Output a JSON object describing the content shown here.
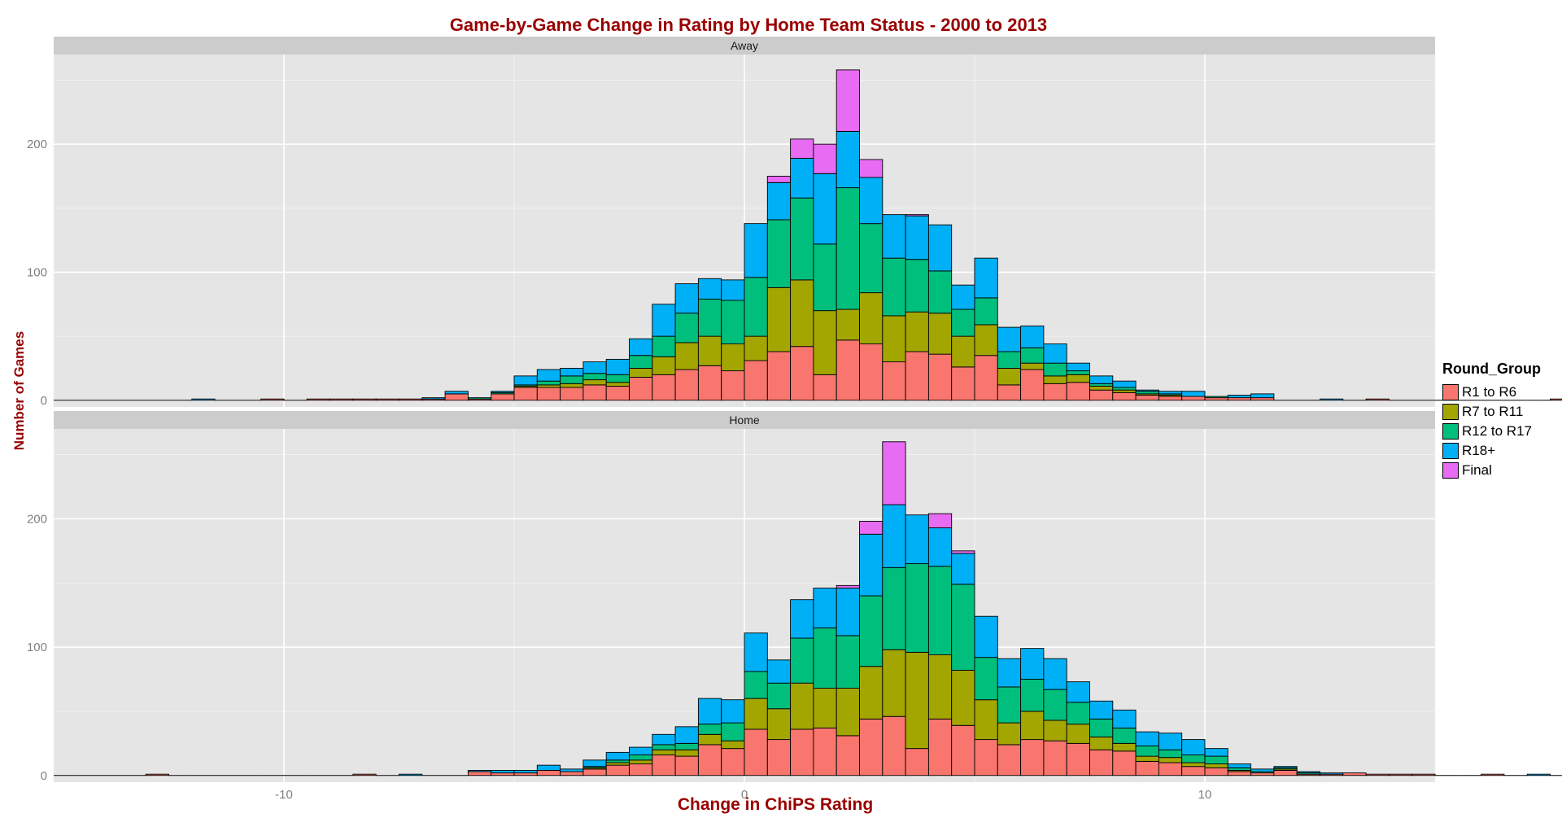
{
  "chart_data": {
    "type": "bar",
    "title": "Game-by-Game Change in Rating by Home Team Status - 2000 to 2013",
    "xlabel": "Change in ChiPS Rating",
    "ylabel": "Number of Games",
    "legend_title": "Round_Group",
    "legend_position": "right",
    "stacked": true,
    "grid": true,
    "xlim": [
      -15,
      15
    ],
    "ylim": [
      0,
      270
    ],
    "x_ticks": [
      -10,
      0,
      10
    ],
    "y_ticks": [
      0,
      100,
      200
    ],
    "bin_width": 0.5,
    "bin_start": -15,
    "groups": [
      {
        "name": "R1 to R6",
        "color": "#F8766D"
      },
      {
        "name": "R7 to R11",
        "color": "#A3A500"
      },
      {
        "name": "R12 to R17",
        "color": "#00BF7D"
      },
      {
        "name": "R18+",
        "color": "#00B0F6"
      },
      {
        "name": "Final",
        "color": "#E76BF3"
      }
    ],
    "panels": [
      {
        "label": "Away",
        "bins": [
          [
            0,
            0,
            0,
            0,
            0
          ],
          [
            0,
            0,
            0,
            0,
            0
          ],
          [
            0,
            0,
            0,
            0,
            0
          ],
          [
            0,
            0,
            0,
            0,
            0
          ],
          [
            0,
            0,
            0,
            0,
            0
          ],
          [
            0,
            0,
            0,
            0,
            0
          ],
          [
            0,
            0,
            0,
            1,
            0
          ],
          [
            0,
            0,
            0,
            0,
            0
          ],
          [
            0,
            0,
            0,
            0,
            0
          ],
          [
            1,
            0,
            0,
            0,
            0
          ],
          [
            0,
            0,
            0,
            0,
            0
          ],
          [
            1,
            0,
            0,
            0,
            0
          ],
          [
            1,
            0,
            0,
            0,
            0
          ],
          [
            1,
            0,
            0,
            0,
            0
          ],
          [
            1,
            0,
            0,
            0,
            0
          ],
          [
            1,
            0,
            0,
            0,
            0
          ],
          [
            1,
            0,
            0,
            1,
            0
          ],
          [
            5,
            0,
            0,
            2,
            0
          ],
          [
            1,
            0,
            1,
            0,
            0
          ],
          [
            5,
            0,
            1,
            1,
            0
          ],
          [
            10,
            1,
            1,
            7,
            0
          ],
          [
            10,
            2,
            3,
            9,
            0
          ],
          [
            10,
            3,
            6,
            6,
            0
          ],
          [
            12,
            4,
            5,
            9,
            0
          ],
          [
            11,
            3,
            6,
            12,
            0
          ],
          [
            18,
            7,
            10,
            13,
            0
          ],
          [
            20,
            14,
            16,
            25,
            0
          ],
          [
            24,
            21,
            23,
            23,
            0
          ],
          [
            27,
            23,
            29,
            16,
            0
          ],
          [
            23,
            21,
            34,
            16,
            0
          ],
          [
            31,
            19,
            46,
            42,
            0
          ],
          [
            38,
            50,
            53,
            29,
            5
          ],
          [
            42,
            52,
            64,
            31,
            15
          ],
          [
            20,
            50,
            52,
            55,
            23
          ],
          [
            47,
            24,
            95,
            44,
            48
          ],
          [
            44,
            40,
            54,
            36,
            14
          ],
          [
            30,
            36,
            45,
            34,
            0
          ],
          [
            38,
            31,
            41,
            34,
            1
          ],
          [
            36,
            32,
            33,
            36,
            0
          ],
          [
            26,
            24,
            21,
            19,
            0
          ],
          [
            35,
            24,
            21,
            31,
            0
          ],
          [
            12,
            13,
            13,
            19,
            0
          ],
          [
            24,
            5,
            12,
            17,
            0
          ],
          [
            13,
            6,
            10,
            15,
            0
          ],
          [
            14,
            6,
            3,
            6,
            0
          ],
          [
            8,
            3,
            2,
            6,
            0
          ],
          [
            6,
            2,
            2,
            5,
            0
          ],
          [
            4,
            1,
            2,
            1,
            0
          ],
          [
            3,
            1,
            1,
            2,
            0
          ],
          [
            3,
            0,
            0,
            4,
            0
          ],
          [
            2,
            0,
            1,
            0,
            0
          ],
          [
            2,
            0,
            0,
            2,
            0
          ],
          [
            2,
            0,
            0,
            3,
            0
          ],
          [
            0,
            0,
            0,
            0,
            0
          ],
          [
            0,
            0,
            0,
            0,
            0
          ],
          [
            0,
            0,
            0,
            1,
            0
          ],
          [
            0,
            0,
            0,
            0,
            0
          ],
          [
            1,
            0,
            0,
            0,
            0
          ],
          [
            0,
            0,
            0,
            0,
            0
          ],
          [
            0,
            0,
            0,
            0,
            0
          ],
          [
            0,
            0,
            0,
            0,
            0
          ],
          [
            0,
            0,
            0,
            0,
            0
          ],
          [
            0,
            0,
            0,
            0,
            0
          ],
          [
            0,
            0,
            0,
            0,
            0
          ],
          [
            0,
            0,
            0,
            0,
            0
          ],
          [
            1,
            0,
            0,
            0,
            0
          ],
          [
            0,
            0,
            0,
            0,
            0
          ],
          [
            0,
            0,
            0,
            0,
            0
          ],
          [
            0,
            0,
            0,
            0,
            0
          ],
          [
            0,
            0,
            0,
            0,
            0
          ],
          [
            0,
            0,
            0,
            0,
            0
          ],
          [
            0,
            0,
            0,
            0,
            0
          ]
        ]
      },
      {
        "label": "Home",
        "bins": [
          [
            0,
            0,
            0,
            0,
            0
          ],
          [
            0,
            0,
            0,
            0,
            0
          ],
          [
            0,
            0,
            0,
            0,
            0
          ],
          [
            0,
            0,
            0,
            0,
            0
          ],
          [
            1,
            0,
            0,
            0,
            0
          ],
          [
            0,
            0,
            0,
            0,
            0
          ],
          [
            0,
            0,
            0,
            0,
            0
          ],
          [
            0,
            0,
            0,
            0,
            0
          ],
          [
            0,
            0,
            0,
            0,
            0
          ],
          [
            0,
            0,
            0,
            0,
            0
          ],
          [
            0,
            0,
            0,
            0,
            0
          ],
          [
            0,
            0,
            0,
            0,
            0
          ],
          [
            0,
            0,
            0,
            0,
            0
          ],
          [
            1,
            0,
            0,
            0,
            0
          ],
          [
            0,
            0,
            0,
            0,
            0
          ],
          [
            0,
            0,
            0,
            1,
            0
          ],
          [
            0,
            0,
            0,
            0,
            0
          ],
          [
            0,
            0,
            0,
            0,
            0
          ],
          [
            3,
            0,
            0,
            1,
            0
          ],
          [
            2,
            0,
            0,
            2,
            0
          ],
          [
            2,
            0,
            0,
            2,
            0
          ],
          [
            4,
            0,
            0,
            4,
            0
          ],
          [
            3,
            0,
            0,
            2,
            0
          ],
          [
            5,
            1,
            1,
            5,
            0
          ],
          [
            8,
            2,
            2,
            6,
            0
          ],
          [
            9,
            3,
            4,
            6,
            0
          ],
          [
            16,
            4,
            4,
            8,
            0
          ],
          [
            15,
            5,
            5,
            13,
            0
          ],
          [
            24,
            8,
            8,
            20,
            0
          ],
          [
            21,
            6,
            14,
            18,
            0
          ],
          [
            36,
            24,
            21,
            30,
            0
          ],
          [
            28,
            24,
            20,
            18,
            0
          ],
          [
            36,
            36,
            35,
            30,
            0
          ],
          [
            37,
            31,
            47,
            31,
            0
          ],
          [
            31,
            37,
            41,
            37,
            2
          ],
          [
            44,
            41,
            55,
            48,
            10
          ],
          [
            46,
            52,
            64,
            49,
            49
          ],
          [
            21,
            75,
            69,
            38,
            0
          ],
          [
            44,
            50,
            69,
            30,
            11
          ],
          [
            39,
            43,
            67,
            24,
            2
          ],
          [
            28,
            31,
            33,
            32,
            0
          ],
          [
            24,
            17,
            28,
            22,
            0
          ],
          [
            28,
            22,
            25,
            24,
            0
          ],
          [
            27,
            16,
            24,
            24,
            0
          ],
          [
            25,
            15,
            17,
            16,
            0
          ],
          [
            20,
            10,
            14,
            14,
            0
          ],
          [
            19,
            6,
            12,
            14,
            0
          ],
          [
            11,
            4,
            8,
            11,
            0
          ],
          [
            10,
            4,
            6,
            13,
            0
          ],
          [
            7,
            3,
            6,
            12,
            0
          ],
          [
            6,
            3,
            6,
            6,
            0
          ],
          [
            3,
            1,
            2,
            3,
            0
          ],
          [
            2,
            0,
            1,
            2,
            0
          ],
          [
            4,
            1,
            1,
            1,
            0
          ],
          [
            1,
            0,
            1,
            1,
            0
          ],
          [
            1,
            0,
            0,
            1,
            0
          ],
          [
            2,
            0,
            0,
            0,
            0
          ],
          [
            1,
            0,
            0,
            0,
            0
          ],
          [
            1,
            0,
            0,
            0,
            0
          ],
          [
            1,
            0,
            0,
            0,
            0
          ],
          [
            0,
            0,
            0,
            0,
            0
          ],
          [
            0,
            0,
            0,
            0,
            0
          ],
          [
            1,
            0,
            0,
            0,
            0
          ],
          [
            0,
            0,
            0,
            0,
            0
          ],
          [
            0,
            0,
            0,
            1,
            0
          ],
          [
            0,
            0,
            0,
            0,
            0
          ],
          [
            0,
            0,
            0,
            0,
            0
          ],
          [
            0,
            0,
            0,
            0,
            0
          ],
          [
            0,
            0,
            0,
            0,
            0
          ],
          [
            0,
            0,
            0,
            0,
            0
          ],
          [
            0,
            0,
            0,
            0,
            0
          ],
          [
            0,
            0,
            0,
            0,
            0
          ]
        ]
      }
    ]
  }
}
